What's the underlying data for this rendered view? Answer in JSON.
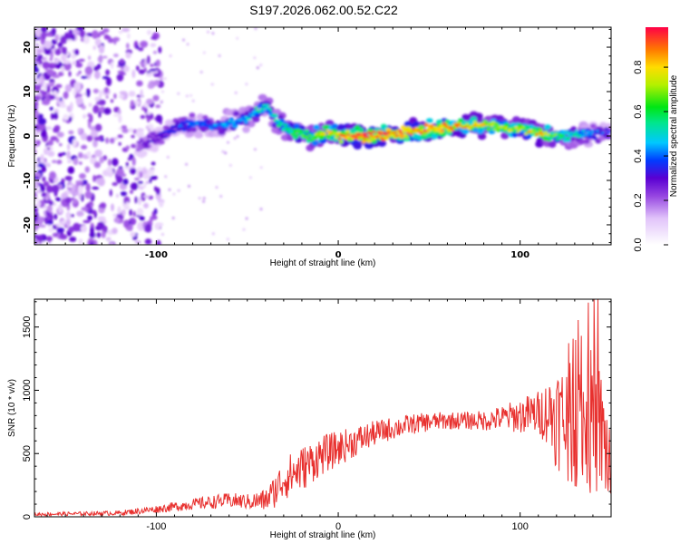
{
  "title": "S197.2026.062.00.52.C22",
  "chart_data": [
    {
      "type": "heatmap",
      "name": "spectrogram",
      "xlabel": "Height of straight line (km)",
      "ylabel": "Frequency (Hz)",
      "xlim": [
        -167,
        150
      ],
      "ylim": [
        -24.5,
        24.5
      ],
      "xticks": [
        -100,
        0,
        100
      ],
      "xtick_labels": [
        "-100",
        "0",
        "100"
      ],
      "yticks": [
        -20,
        -10,
        0,
        10,
        20
      ],
      "ytick_labels": [
        "-20",
        "-10",
        "0",
        "10",
        "20"
      ],
      "ridge_x": [
        -110,
        -100,
        -90,
        -80,
        -70,
        -60,
        -50,
        -40,
        -35,
        -30,
        -25,
        -20,
        -15,
        -10,
        -5,
        0,
        10,
        20,
        30,
        40,
        50,
        60,
        70,
        80,
        90,
        100,
        110,
        120,
        130,
        140,
        150
      ],
      "ridge_freq": [
        -2,
        -0.5,
        2,
        3,
        2,
        3,
        4,
        7,
        4,
        2,
        1,
        0.5,
        -0.5,
        0.5,
        1,
        0,
        0,
        0,
        0.5,
        1,
        1.5,
        2,
        2.5,
        2.5,
        2,
        1.5,
        0.5,
        0,
        0,
        0.5,
        1
      ],
      "ridge_amplitude": [
        0.25,
        0.3,
        0.35,
        0.4,
        0.4,
        0.45,
        0.45,
        0.5,
        0.5,
        0.55,
        0.6,
        0.6,
        0.6,
        0.7,
        0.75,
        0.8,
        0.95,
        0.95,
        0.9,
        0.9,
        0.9,
        0.85,
        0.8,
        0.75,
        0.7,
        0.7,
        0.8,
        0.6,
        0.5,
        0.4,
        0.35
      ],
      "colorbar": {
        "label": "Normalized spectral amplitude",
        "range": [
          0,
          0.98
        ],
        "ticks": [
          0,
          0.2,
          0.4,
          0.6,
          0.8
        ],
        "tick_labels": [
          "0.0",
          "0.2",
          "0.4",
          "0.6",
          "0.8"
        ]
      }
    },
    {
      "type": "line",
      "name": "snr",
      "xlabel": "Height of straight line (km)",
      "ylabel": "SNR (10 * v/v)",
      "xlim": [
        -167,
        150
      ],
      "ylim": [
        0,
        1720
      ],
      "xticks": [
        -100,
        0,
        100
      ],
      "xtick_labels": [
        "-100",
        "0",
        "100"
      ],
      "yticks": [
        0,
        500,
        1000,
        1500
      ],
      "ytick_labels": [
        "0",
        "500",
        "1000",
        "1500"
      ],
      "color": "#e8302e",
      "envelope_x": [
        -167,
        -140,
        -120,
        -100,
        -80,
        -60,
        -50,
        -40,
        -35,
        -30,
        -20,
        -10,
        0,
        10,
        20,
        30,
        40,
        50,
        60,
        70,
        80,
        90,
        100,
        110,
        115,
        120,
        130,
        140,
        145,
        150
      ],
      "envelope_mean": [
        20,
        25,
        30,
        60,
        100,
        130,
        120,
        130,
        200,
        300,
        380,
        480,
        540,
        600,
        660,
        700,
        730,
        750,
        760,
        760,
        760,
        780,
        800,
        820,
        830,
        800,
        720,
        750,
        650,
        400
      ],
      "envelope_spread": [
        15,
        15,
        20,
        30,
        45,
        60,
        60,
        90,
        130,
        170,
        180,
        160,
        140,
        120,
        100,
        90,
        80,
        75,
        70,
        70,
        80,
        100,
        140,
        180,
        260,
        420,
        500,
        600,
        500,
        400
      ]
    }
  ]
}
